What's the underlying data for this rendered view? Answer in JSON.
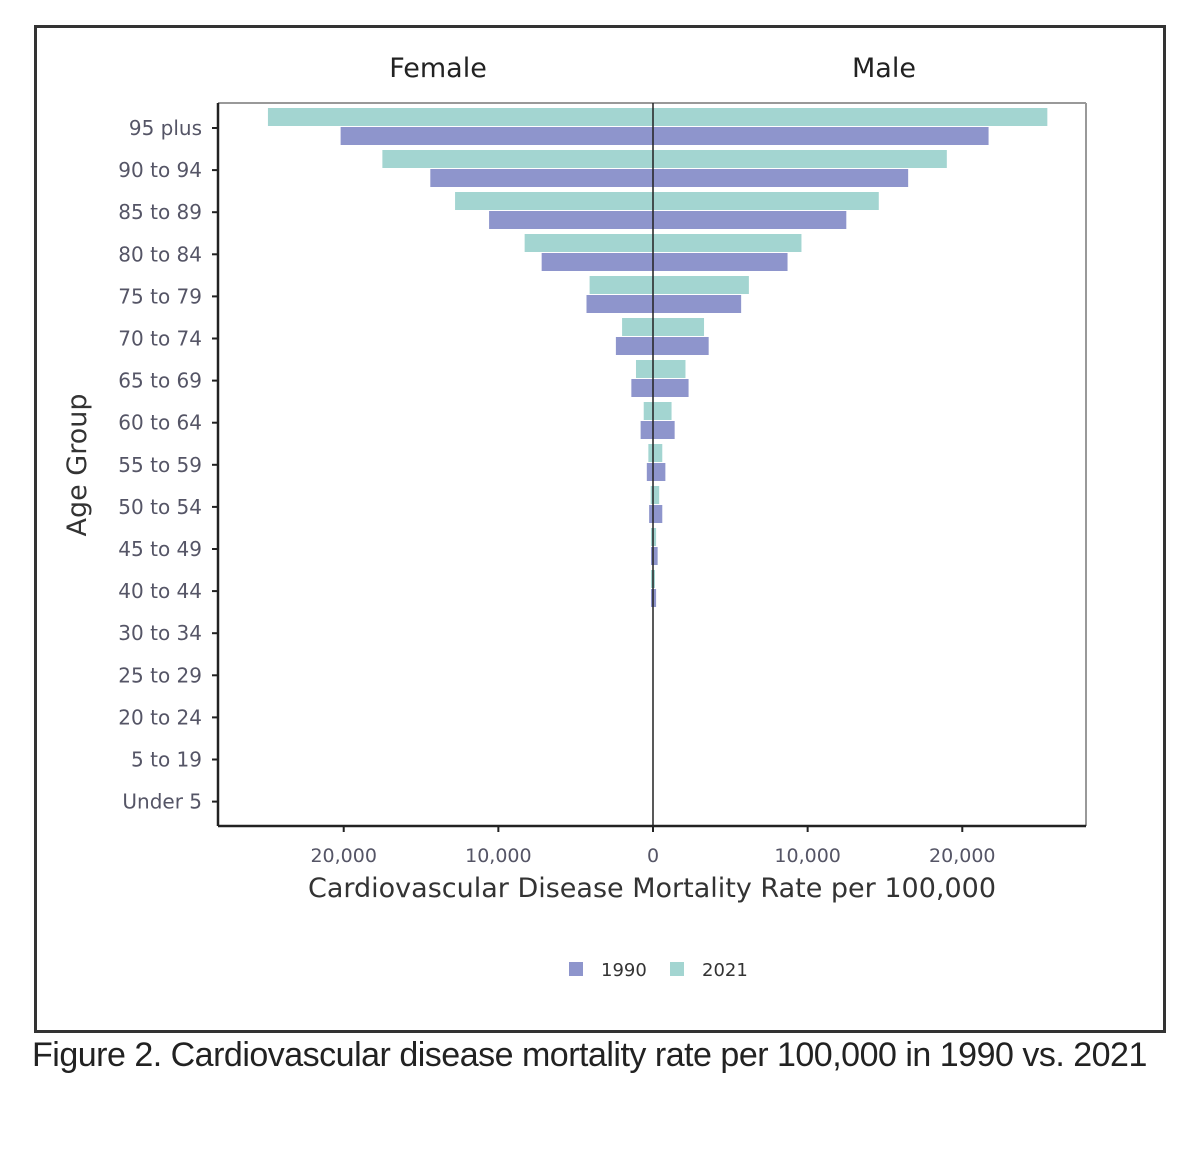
{
  "figure": {
    "caption": "Figure 2. Cardiovascular disease mortality rate per 100,000 in 1990 vs. 2021"
  },
  "colors": {
    "series_1990": "#8e95cc",
    "series_2021": "#a3d5d1",
    "axis": "#222222",
    "tick_text": "#555566"
  },
  "chart_data": {
    "type": "bar",
    "orientation": "horizontal",
    "layout": "population-pyramid",
    "panels": [
      "Female",
      "Male"
    ],
    "xlabel": "Cardiovascular Disease Mortality Rate per 100,000",
    "ylabel": "Age Group",
    "xlim": [
      -28000,
      28000
    ],
    "xticks": [
      -20000,
      -10000,
      0,
      10000,
      20000
    ],
    "xtick_labels": [
      "20,000",
      "10,000",
      "0",
      "10,000",
      "20,000"
    ],
    "categories": [
      "95 plus",
      "90 to 94",
      "85 to 89",
      "80 to 84",
      "75 to 79",
      "70 to 74",
      "65 to 69",
      "60 to 64",
      "55 to 59",
      "50 to 54",
      "45 to 49",
      "40 to 44",
      "30 to 34",
      "25 to 29",
      "20 to 24",
      "5 to 19",
      "Under 5"
    ],
    "legend": [
      "1990",
      "2021"
    ],
    "legend_position": "bottom",
    "series": [
      {
        "name": "1990",
        "female": [
          20200,
          14400,
          10600,
          7200,
          4300,
          2400,
          1400,
          800,
          400,
          250,
          100,
          50,
          0,
          0,
          0,
          0,
          0
        ],
        "male": [
          21700,
          16500,
          12500,
          8700,
          5700,
          3600,
          2300,
          1400,
          800,
          600,
          300,
          200,
          0,
          0,
          0,
          0,
          0
        ]
      },
      {
        "name": "2021",
        "female": [
          24900,
          17500,
          12800,
          8300,
          4100,
          2000,
          1100,
          600,
          300,
          150,
          50,
          20,
          0,
          0,
          0,
          0,
          0
        ],
        "male": [
          25500,
          19000,
          14600,
          9600,
          6200,
          3300,
          2100,
          1200,
          600,
          400,
          200,
          100,
          0,
          0,
          0,
          0,
          0
        ]
      }
    ]
  }
}
